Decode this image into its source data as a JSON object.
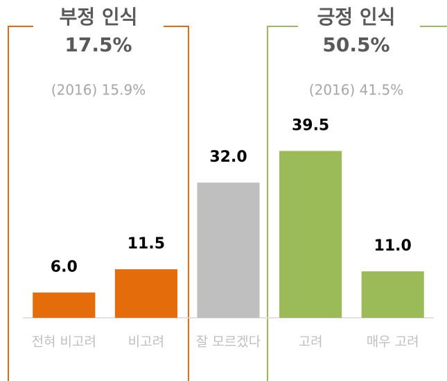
{
  "chart_data": {
    "type": "bar",
    "categories": [
      "전혀 비고려",
      "비고려",
      "잘 모르겠다",
      "고려",
      "매우 고려"
    ],
    "values": [
      6.0,
      11.5,
      32.0,
      39.5,
      11.0
    ],
    "value_labels": [
      "6.0",
      "11.5",
      "32.0",
      "39.5",
      "11.0"
    ],
    "colors": [
      "#e46c0a",
      "#e46c0a",
      "#bfbfbf",
      "#9bbb59",
      "#9bbb59"
    ],
    "ylim": [
      0,
      45
    ],
    "annotations": [
      {
        "title": "부정 인식",
        "value": "17.5%",
        "note": "(2016) 15.9%",
        "color": "#e46c0a"
      },
      {
        "title": "긍정 인식",
        "value": "50.5%",
        "note": "(2016) 41.5%",
        "color": "#9bbb59"
      }
    ]
  }
}
